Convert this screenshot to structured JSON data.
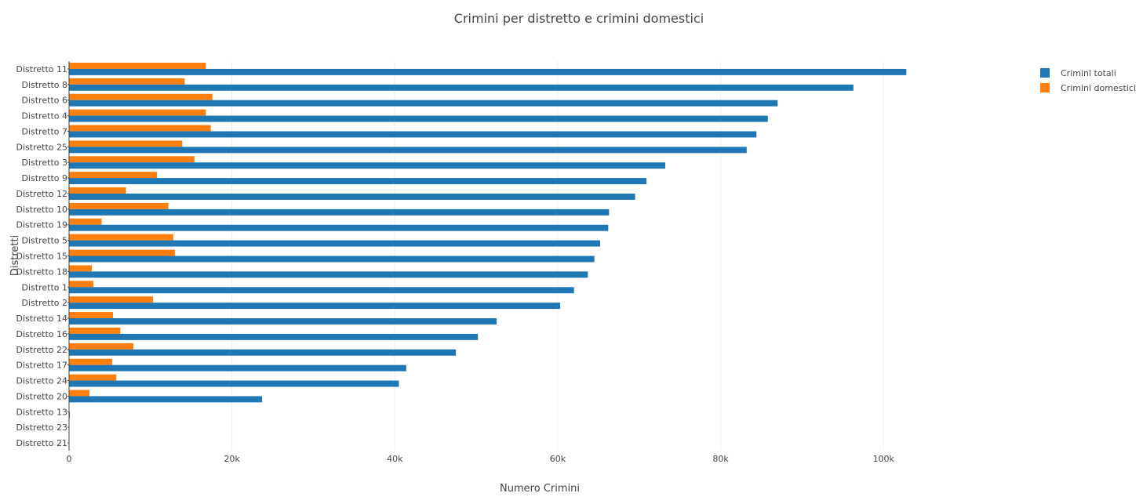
{
  "chart_data": {
    "type": "bar",
    "orientation": "horizontal",
    "title": "Crimini per distretto e crimini domestici",
    "xlabel": "Numero Crimini",
    "ylabel": "Distretti",
    "xlim": [
      0,
      115000
    ],
    "xticks": [
      0,
      20000,
      40000,
      60000,
      80000,
      100000
    ],
    "xtick_labels": [
      "0",
      "20k",
      "40k",
      "60k",
      "80k",
      "100k"
    ],
    "grid": "x",
    "legend_position": "top-right",
    "categories": [
      "Distretto 11",
      "Distretto 8",
      "Distretto 6",
      "Distretto 4",
      "Distretto 7",
      "Distretto 25",
      "Distretto 3",
      "Distretto 9",
      "Distretto 12",
      "Distretto 10",
      "Distretto 19",
      "Distretto 5",
      "Distretto 15",
      "Distretto 18",
      "Distretto 1",
      "Distretto 2",
      "Distretto 14",
      "Distretto 16",
      "Distretto 22",
      "Distretto 17",
      "Distretto 24",
      "Distretto 20",
      "Distretto 13",
      "Distretto 23",
      "Distretto 21"
    ],
    "series": [
      {
        "name": "Crimini totali",
        "color": "#1f77b4",
        "values": [
          102800,
          96300,
          87000,
          85800,
          84400,
          83200,
          73200,
          70900,
          69500,
          66300,
          66200,
          65200,
          64500,
          63700,
          62000,
          60300,
          52500,
          50200,
          47500,
          41400,
          40500,
          23700,
          100,
          20,
          10
        ]
      },
      {
        "name": "Crimini domestici",
        "color": "#ff7f0e",
        "values": [
          16800,
          14200,
          17600,
          16800,
          17400,
          13900,
          15400,
          10800,
          7000,
          12200,
          4000,
          12800,
          13000,
          2800,
          3000,
          10300,
          5400,
          6300,
          7900,
          5300,
          5800,
          2500,
          10,
          5,
          5
        ]
      }
    ]
  }
}
